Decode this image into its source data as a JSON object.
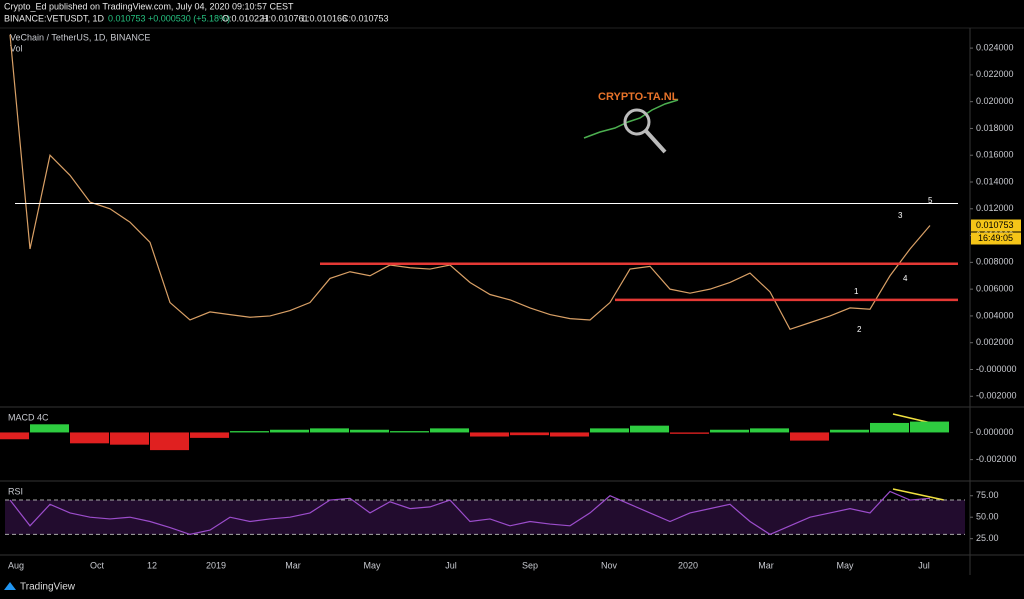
{
  "header": {
    "author_line": "Crypto_Ed published on TradingView.com, July 04, 2020 09:10:57 CEST",
    "symbol": "BINANCE:VETUSDT, 1D",
    "last": "0.010753",
    "change": "+0.000530 (+5.18%)",
    "open": "O:0.010221",
    "high": "H:0.010761",
    "low": "L:0.010166",
    "close": "C:0.010753"
  },
  "chart_data": [
    {
      "type": "line",
      "title": "VeChain / TetherUS, 1D, BINANCE",
      "subtitle": "Vol",
      "color": "#d9a066",
      "values": [
        0.025,
        0.009,
        0.016,
        0.0145,
        0.0125,
        0.012,
        0.011,
        0.0095,
        0.005,
        0.0037,
        0.0043,
        0.0041,
        0.0039,
        0.004,
        0.0044,
        0.005,
        0.0068,
        0.0073,
        0.007,
        0.0078,
        0.0076,
        0.0075,
        0.0078,
        0.0065,
        0.0056,
        0.0052,
        0.0046,
        0.0041,
        0.0038,
        0.0037,
        0.005,
        0.0075,
        0.0077,
        0.006,
        0.0057,
        0.006,
        0.0065,
        0.0072,
        0.0058,
        0.003,
        0.0035,
        0.004,
        0.0046,
        0.0045,
        0.007,
        0.009,
        0.01075
      ],
      "ylim": [
        -0.0028,
        0.0255
      ],
      "yticks": [
        {
          "value": 0.024,
          "label": "0.024000"
        },
        {
          "value": 0.022,
          "label": "0.022000"
        },
        {
          "value": 0.02,
          "label": "0.020000"
        },
        {
          "value": 0.018,
          "label": "0.018000"
        },
        {
          "value": 0.016,
          "label": "0.016000"
        },
        {
          "value": 0.014,
          "label": "0.014000"
        },
        {
          "value": 0.012,
          "label": "0.012000"
        },
        {
          "value": 0.01,
          "label": "0.010000"
        },
        {
          "value": 0.008,
          "label": "0.008000"
        },
        {
          "value": 0.006,
          "label": "0.006000"
        },
        {
          "value": 0.004,
          "label": "0.004000"
        },
        {
          "value": 0.002,
          "label": "0.002000"
        },
        {
          "value": 0,
          "label": "-0.000000"
        },
        {
          "value": -0.002,
          "label": "-0.002000"
        }
      ],
      "levels": [
        {
          "value": 0.0124,
          "color": "#ffffff"
        },
        {
          "value": 0.0079,
          "color": "#e53935"
        },
        {
          "value": 0.0052,
          "color": "#e53935"
        }
      ],
      "last_label": {
        "value": 0.010753,
        "label": "0.010753"
      },
      "countdown": "16:49:05",
      "annotations": [
        "1",
        "2",
        "3",
        "4",
        "5"
      ],
      "watermark": "CRYPTO-TA.NL"
    },
    {
      "type": "bar",
      "title": "MACD 4C",
      "values": [
        -0.0005,
        0.0006,
        -0.0008,
        -0.0009,
        -0.0013,
        -0.0004,
        0.0001,
        0.0002,
        0.0003,
        0.0002,
        0.0001,
        0.0003,
        -0.0003,
        -0.0002,
        -0.0003,
        0.0003,
        0.0005,
        -0.0001,
        0.0002,
        0.0003,
        -0.0006,
        0.0002,
        0.0007,
        0.0008
      ],
      "colors": {
        "positive": "#2ecc40",
        "negative": "#e02020"
      },
      "ylim": [
        -0.0035,
        0.0018
      ],
      "yticks": [
        {
          "value": 0,
          "label": "0.000000"
        },
        {
          "value": -0.002,
          "label": "-0.002000"
        }
      ]
    },
    {
      "type": "line",
      "title": "RSI",
      "color": "#9c4dcc",
      "values": [
        70,
        40,
        65,
        55,
        50,
        48,
        50,
        45,
        38,
        30,
        35,
        50,
        45,
        48,
        50,
        55,
        70,
        72,
        55,
        68,
        60,
        62,
        70,
        45,
        48,
        40,
        45,
        42,
        40,
        55,
        75,
        65,
        55,
        45,
        55,
        60,
        65,
        45,
        30,
        40,
        50,
        55,
        60,
        55,
        80,
        70,
        72
      ],
      "ylim": [
        6,
        91
      ],
      "bands": [
        30,
        70
      ],
      "yticks": [
        {
          "value": 75,
          "label": "75.00"
        },
        {
          "value": 50,
          "label": "50.00"
        },
        {
          "value": 25,
          "label": "25.00"
        }
      ]
    }
  ],
  "time_labels": [
    "Aug",
    "Oct",
    "12",
    "2019",
    "Mar",
    "May",
    "Jul",
    "Sep",
    "Nov",
    "2020",
    "Mar",
    "May",
    "Jul"
  ],
  "footer": {
    "brand": "TradingView"
  }
}
